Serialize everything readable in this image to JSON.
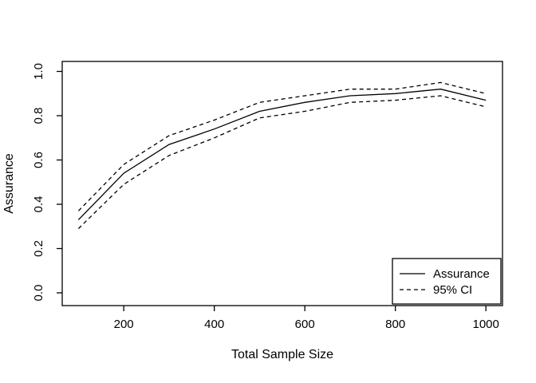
{
  "chart_data": {
    "type": "line",
    "title": "",
    "xlabel": "Total Sample Size",
    "ylabel": "Assurance",
    "x": [
      100,
      200,
      300,
      400,
      500,
      600,
      700,
      800,
      900,
      1000
    ],
    "series": [
      {
        "name": "Assurance",
        "style": "solid",
        "values": [
          0.33,
          0.54,
          0.67,
          0.74,
          0.82,
          0.86,
          0.89,
          0.9,
          0.92,
          0.87
        ]
      },
      {
        "name": "95% CI upper",
        "style": "dashed",
        "values": [
          0.37,
          0.58,
          0.71,
          0.78,
          0.86,
          0.89,
          0.92,
          0.92,
          0.95,
          0.9
        ]
      },
      {
        "name": "95% CI lower",
        "style": "dashed",
        "values": [
          0.29,
          0.49,
          0.62,
          0.7,
          0.79,
          0.82,
          0.86,
          0.87,
          0.89,
          0.84
        ]
      }
    ],
    "xlim": [
      100,
      1000
    ],
    "ylim": [
      0.0,
      1.0
    ],
    "xticks": [
      "200",
      "400",
      "600",
      "800",
      "1000"
    ],
    "yticks": [
      "0.0",
      "0.2",
      "0.4",
      "0.6",
      "0.8",
      "1.0"
    ],
    "grid": "off",
    "line_color": "#000000",
    "background_color": "#ffffff",
    "legend": {
      "position": "bottomright",
      "entries": [
        {
          "label": "Assurance",
          "style": "solid"
        },
        {
          "label": "95% CI",
          "style": "dashed"
        }
      ]
    }
  }
}
